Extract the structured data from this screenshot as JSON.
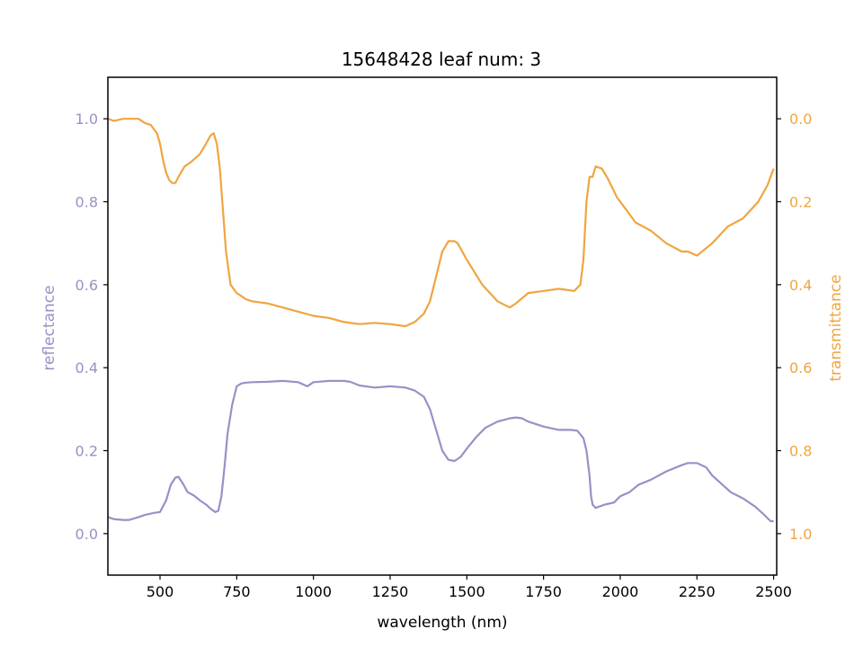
{
  "chart_data": {
    "type": "line",
    "title": "15648428 leaf num: 3",
    "xlabel": "wavelength (nm)",
    "ylabel_left": "reflectance",
    "ylabel_right": "transmittance",
    "xlim": [
      330,
      2510
    ],
    "ylim_left": [
      -0.1,
      1.1
    ],
    "ylim_right": [
      1.1,
      -0.1
    ],
    "right_axis_inverted": true,
    "grid": false,
    "x_ticks": [
      500,
      750,
      1000,
      1250,
      1500,
      1750,
      2000,
      2250,
      2500
    ],
    "y_ticks_left": [
      0.0,
      0.2,
      0.4,
      0.6,
      0.8,
      1.0
    ],
    "y_ticks_right": [
      0.0,
      0.2,
      0.4,
      0.6,
      0.8,
      1.0
    ],
    "series": [
      {
        "name": "reflectance",
        "axis": "left",
        "color": "#9891c6",
        "x": [
          330,
          350,
          380,
          400,
          430,
          450,
          480,
          500,
          520,
          535,
          550,
          560,
          575,
          590,
          610,
          630,
          650,
          665,
          680,
          690,
          700,
          710,
          720,
          735,
          750,
          765,
          780,
          800,
          850,
          900,
          950,
          980,
          1000,
          1050,
          1100,
          1120,
          1150,
          1200,
          1250,
          1300,
          1330,
          1360,
          1380,
          1400,
          1420,
          1440,
          1460,
          1480,
          1500,
          1530,
          1560,
          1600,
          1640,
          1660,
          1680,
          1700,
          1750,
          1800,
          1840,
          1860,
          1880,
          1890,
          1900,
          1905,
          1910,
          1920,
          1950,
          1980,
          2000,
          2030,
          2060,
          2100,
          2150,
          2200,
          2220,
          2250,
          2280,
          2300,
          2330,
          2360,
          2400,
          2440,
          2470,
          2490,
          2500
        ],
        "y": [
          0.04,
          0.035,
          0.033,
          0.033,
          0.04,
          0.045,
          0.05,
          0.052,
          0.08,
          0.118,
          0.135,
          0.137,
          0.12,
          0.1,
          0.092,
          0.08,
          0.07,
          0.06,
          0.052,
          0.055,
          0.09,
          0.16,
          0.24,
          0.31,
          0.355,
          0.362,
          0.364,
          0.365,
          0.366,
          0.368,
          0.365,
          0.355,
          0.365,
          0.368,
          0.368,
          0.366,
          0.357,
          0.352,
          0.355,
          0.352,
          0.345,
          0.33,
          0.3,
          0.25,
          0.2,
          0.178,
          0.175,
          0.185,
          0.205,
          0.232,
          0.255,
          0.27,
          0.278,
          0.28,
          0.278,
          0.27,
          0.258,
          0.25,
          0.25,
          0.248,
          0.23,
          0.2,
          0.14,
          0.09,
          0.07,
          0.062,
          0.07,
          0.075,
          0.09,
          0.1,
          0.118,
          0.13,
          0.15,
          0.165,
          0.17,
          0.17,
          0.16,
          0.14,
          0.12,
          0.1,
          0.085,
          0.065,
          0.045,
          0.03,
          0.03
        ]
      },
      {
        "name": "transmittance",
        "axis": "right",
        "color": "#f0a540",
        "x": [
          330,
          350,
          380,
          400,
          430,
          450,
          470,
          490,
          500,
          510,
          520,
          530,
          540,
          550,
          560,
          580,
          600,
          630,
          650,
          665,
          675,
          685,
          695,
          705,
          715,
          730,
          750,
          780,
          800,
          850,
          900,
          950,
          1000,
          1050,
          1100,
          1150,
          1200,
          1250,
          1280,
          1300,
          1330,
          1360,
          1380,
          1400,
          1420,
          1440,
          1460,
          1470,
          1500,
          1550,
          1600,
          1640,
          1660,
          1700,
          1750,
          1800,
          1850,
          1870,
          1880,
          1890,
          1900,
          1910,
          1920,
          1940,
          1960,
          1990,
          2020,
          2050,
          2100,
          2150,
          2200,
          2220,
          2250,
          2300,
          2350,
          2400,
          2450,
          2480,
          2500
        ],
        "y": [
          0.0,
          0.005,
          0.0,
          0.0,
          0.0,
          0.01,
          0.015,
          0.035,
          0.06,
          0.1,
          0.13,
          0.148,
          0.155,
          0.155,
          0.14,
          0.115,
          0.105,
          0.085,
          0.06,
          0.04,
          0.035,
          0.06,
          0.12,
          0.22,
          0.32,
          0.4,
          0.42,
          0.435,
          0.44,
          0.445,
          0.455,
          0.465,
          0.475,
          0.48,
          0.49,
          0.495,
          0.492,
          0.495,
          0.498,
          0.5,
          0.49,
          0.47,
          0.44,
          0.38,
          0.32,
          0.295,
          0.295,
          0.3,
          0.34,
          0.4,
          0.44,
          0.455,
          0.445,
          0.42,
          0.415,
          0.41,
          0.415,
          0.4,
          0.34,
          0.2,
          0.14,
          0.14,
          0.115,
          0.12,
          0.145,
          0.19,
          0.22,
          0.25,
          0.27,
          0.3,
          0.32,
          0.32,
          0.33,
          0.3,
          0.26,
          0.24,
          0.2,
          0.16,
          0.12
        ]
      }
    ]
  }
}
